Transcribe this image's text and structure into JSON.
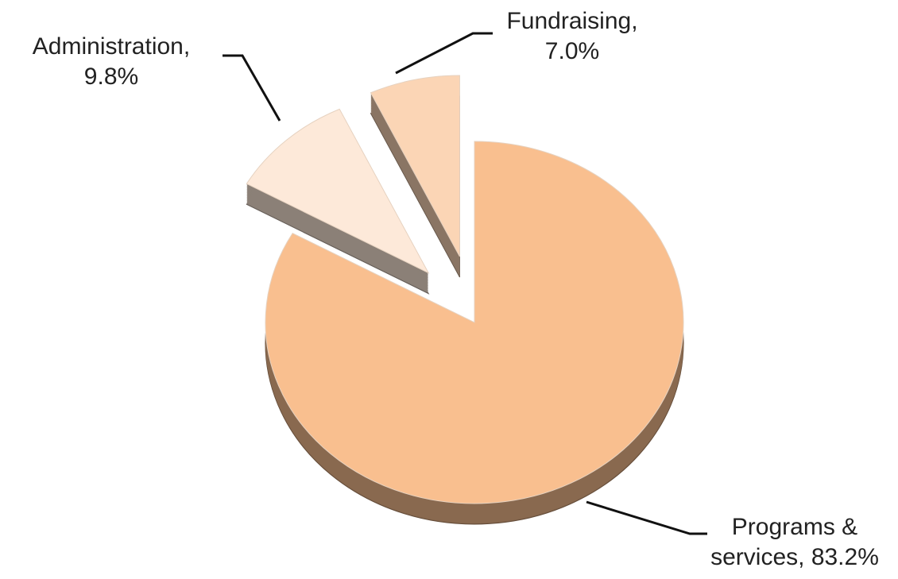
{
  "chart_data": {
    "type": "pie",
    "categories": [
      "Programs & services,",
      "Administration,",
      "Fundraising,"
    ],
    "values": [
      83.2,
      9.8,
      7.0
    ],
    "value_labels": [
      "83.2%",
      "9.8%",
      "7.0%"
    ],
    "colors": [
      "#f9bf8f",
      "#fde9d9",
      "#fbd5b5"
    ]
  }
}
